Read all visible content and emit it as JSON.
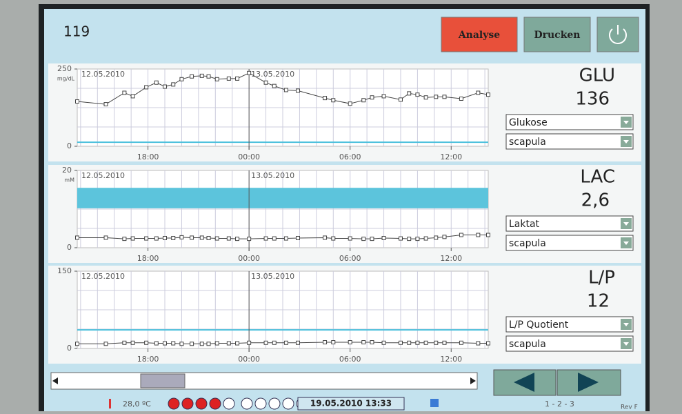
{
  "header": {
    "id": "119",
    "buttons": [
      "Analyse",
      "Drucken"
    ]
  },
  "footer": {
    "temperature": "28,0 ºC",
    "datetime": "19.05.2010 13:33",
    "pages": "1 - 2 - 3",
    "revision": "Rev F"
  },
  "chart_data": [
    {
      "type": "line",
      "name": "GLU",
      "current": "136",
      "unit": "mg/dL",
      "selects": [
        "Glukose",
        "scapula"
      ],
      "dates": [
        "12.05.2010",
        "13.05.2010"
      ],
      "color": "#444",
      "x": [
        13.8,
        15.5,
        16.6,
        17.1,
        17.9,
        18.5,
        19.0,
        19.5,
        20.0,
        20.6,
        21.2,
        21.6,
        22.1,
        22.8,
        23.3,
        24.0,
        25.0,
        25.5,
        26.2,
        26.9,
        28.5,
        29.0,
        30.0,
        30.8,
        31.3,
        32.0,
        33.0,
        33.5,
        34.0,
        34.5,
        35.1,
        35.6,
        36.6,
        37.6,
        38.2
      ],
      "values": [
        145,
        136,
        173,
        162,
        191,
        206,
        193,
        200,
        217,
        226,
        228,
        226,
        217,
        219,
        219,
        237,
        206,
        195,
        182,
        180,
        156,
        149,
        138,
        149,
        158,
        162,
        151,
        171,
        167,
        158,
        160,
        160,
        154,
        173,
        167
      ],
      "xlim": [
        13.8,
        38.2
      ],
      "xticks": [
        {
          "value": 18,
          "label": "18:00"
        },
        {
          "value": 24,
          "label": "00:00"
        },
        {
          "value": 30,
          "label": "06:00"
        },
        {
          "value": 36,
          "label": "12:00"
        }
      ],
      "ylim": [
        0,
        250
      ],
      "yticks": [
        0,
        250
      ],
      "reference_line": 13
    },
    {
      "type": "line",
      "name": "LAC",
      "current": "2,6",
      "unit": "mM",
      "selects": [
        "Laktat",
        "scapula"
      ],
      "dates": [
        "12.05.2010",
        "13.05.2010"
      ],
      "color": "#444",
      "x": [
        13.8,
        15.5,
        16.6,
        17.1,
        17.9,
        18.5,
        19.0,
        19.5,
        20.0,
        20.6,
        21.2,
        21.6,
        22.1,
        22.8,
        23.3,
        24.0,
        25.0,
        25.5,
        26.2,
        26.9,
        28.5,
        29.0,
        30.0,
        30.8,
        31.3,
        32.0,
        33.0,
        33.5,
        34.0,
        34.5,
        35.1,
        35.6,
        36.6,
        37.6,
        38.2
      ],
      "values": [
        2.6,
        2.6,
        2.3,
        2.4,
        2.4,
        2.4,
        2.5,
        2.5,
        2.7,
        2.6,
        2.6,
        2.5,
        2.4,
        2.4,
        2.3,
        2.3,
        2.4,
        2.4,
        2.4,
        2.5,
        2.6,
        2.4,
        2.4,
        2.3,
        2.3,
        2.5,
        2.4,
        2.3,
        2.3,
        2.4,
        2.6,
        2.8,
        3.3,
        3.3,
        3.3
      ],
      "xlim": [
        13.8,
        38.2
      ],
      "xticks": [
        {
          "value": 18,
          "label": "18:00"
        },
        {
          "value": 24,
          "label": "00:00"
        },
        {
          "value": 30,
          "label": "06:00"
        },
        {
          "value": 36,
          "label": "12:00"
        }
      ],
      "ylim": [
        0,
        20
      ],
      "yticks": [
        0,
        20
      ],
      "reference_band": [
        10.2,
        15.5
      ]
    },
    {
      "type": "line",
      "name": "L/P",
      "current": "12",
      "selects": [
        "L/P Quotient",
        "scapula"
      ],
      "dates": [
        "12.05.2010",
        "13.05.2010"
      ],
      "color": "#444",
      "x": [
        13.8,
        15.5,
        16.6,
        17.1,
        17.9,
        18.5,
        19.0,
        19.5,
        20.0,
        20.6,
        21.2,
        21.6,
        22.1,
        22.8,
        23.3,
        24.0,
        25.0,
        25.5,
        26.2,
        26.9,
        28.5,
        29.0,
        30.0,
        30.8,
        31.3,
        32.0,
        33.0,
        33.5,
        34.0,
        34.5,
        35.1,
        35.6,
        36.6,
        37.6,
        38.2
      ],
      "values": [
        9,
        9,
        11,
        11,
        11,
        10,
        10,
        10,
        9,
        9,
        9,
        9,
        10,
        10,
        10,
        11,
        11,
        11,
        11,
        11,
        12,
        12,
        12,
        12,
        12,
        11,
        11,
        11,
        11,
        11,
        11,
        11,
        11,
        10,
        10
      ],
      "xlim": [
        13.8,
        38.2
      ],
      "xticks": [
        {
          "value": 18,
          "label": "18:00"
        },
        {
          "value": 24,
          "label": "00:00"
        },
        {
          "value": 30,
          "label": "06:00"
        },
        {
          "value": 36,
          "label": "12:00"
        }
      ],
      "ylim": [
        0,
        150
      ],
      "yticks": [
        0,
        150
      ],
      "reference_line": 36
    }
  ]
}
